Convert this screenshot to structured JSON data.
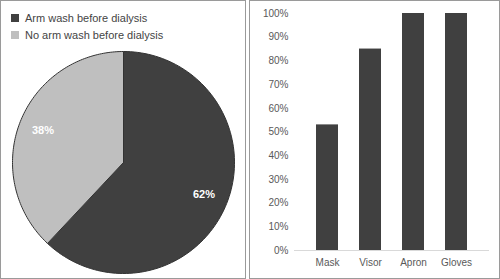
{
  "chart_data": [
    {
      "type": "pie",
      "categories": [
        "Arm wash before dialysis",
        "No arm wash before dialysis"
      ],
      "values": [
        62,
        38
      ],
      "value_labels": [
        "62%",
        "38%"
      ],
      "colors": [
        "#404040",
        "#bfbfbf"
      ],
      "data_labels": true,
      "legend": "top-left"
    },
    {
      "type": "bar",
      "categories": [
        "Mask",
        "Visor",
        "Apron",
        "Gloves"
      ],
      "values": [
        53,
        85,
        100,
        100
      ],
      "color": "#404040",
      "ylim": [
        0,
        100
      ],
      "yticks": [
        {
          "value": 0,
          "label": "0%"
        },
        {
          "value": 10,
          "label": "10%"
        },
        {
          "value": 20,
          "label": "20%"
        },
        {
          "value": 30,
          "label": "30%"
        },
        {
          "value": 40,
          "label": "40%"
        },
        {
          "value": 50,
          "label": "50%"
        },
        {
          "value": 60,
          "label": "60%"
        },
        {
          "value": 70,
          "label": "70%"
        },
        {
          "value": 80,
          "label": "80%"
        },
        {
          "value": 90,
          "label": "90%"
        },
        {
          "value": 100,
          "label": "100%"
        }
      ],
      "grid": false
    }
  ]
}
